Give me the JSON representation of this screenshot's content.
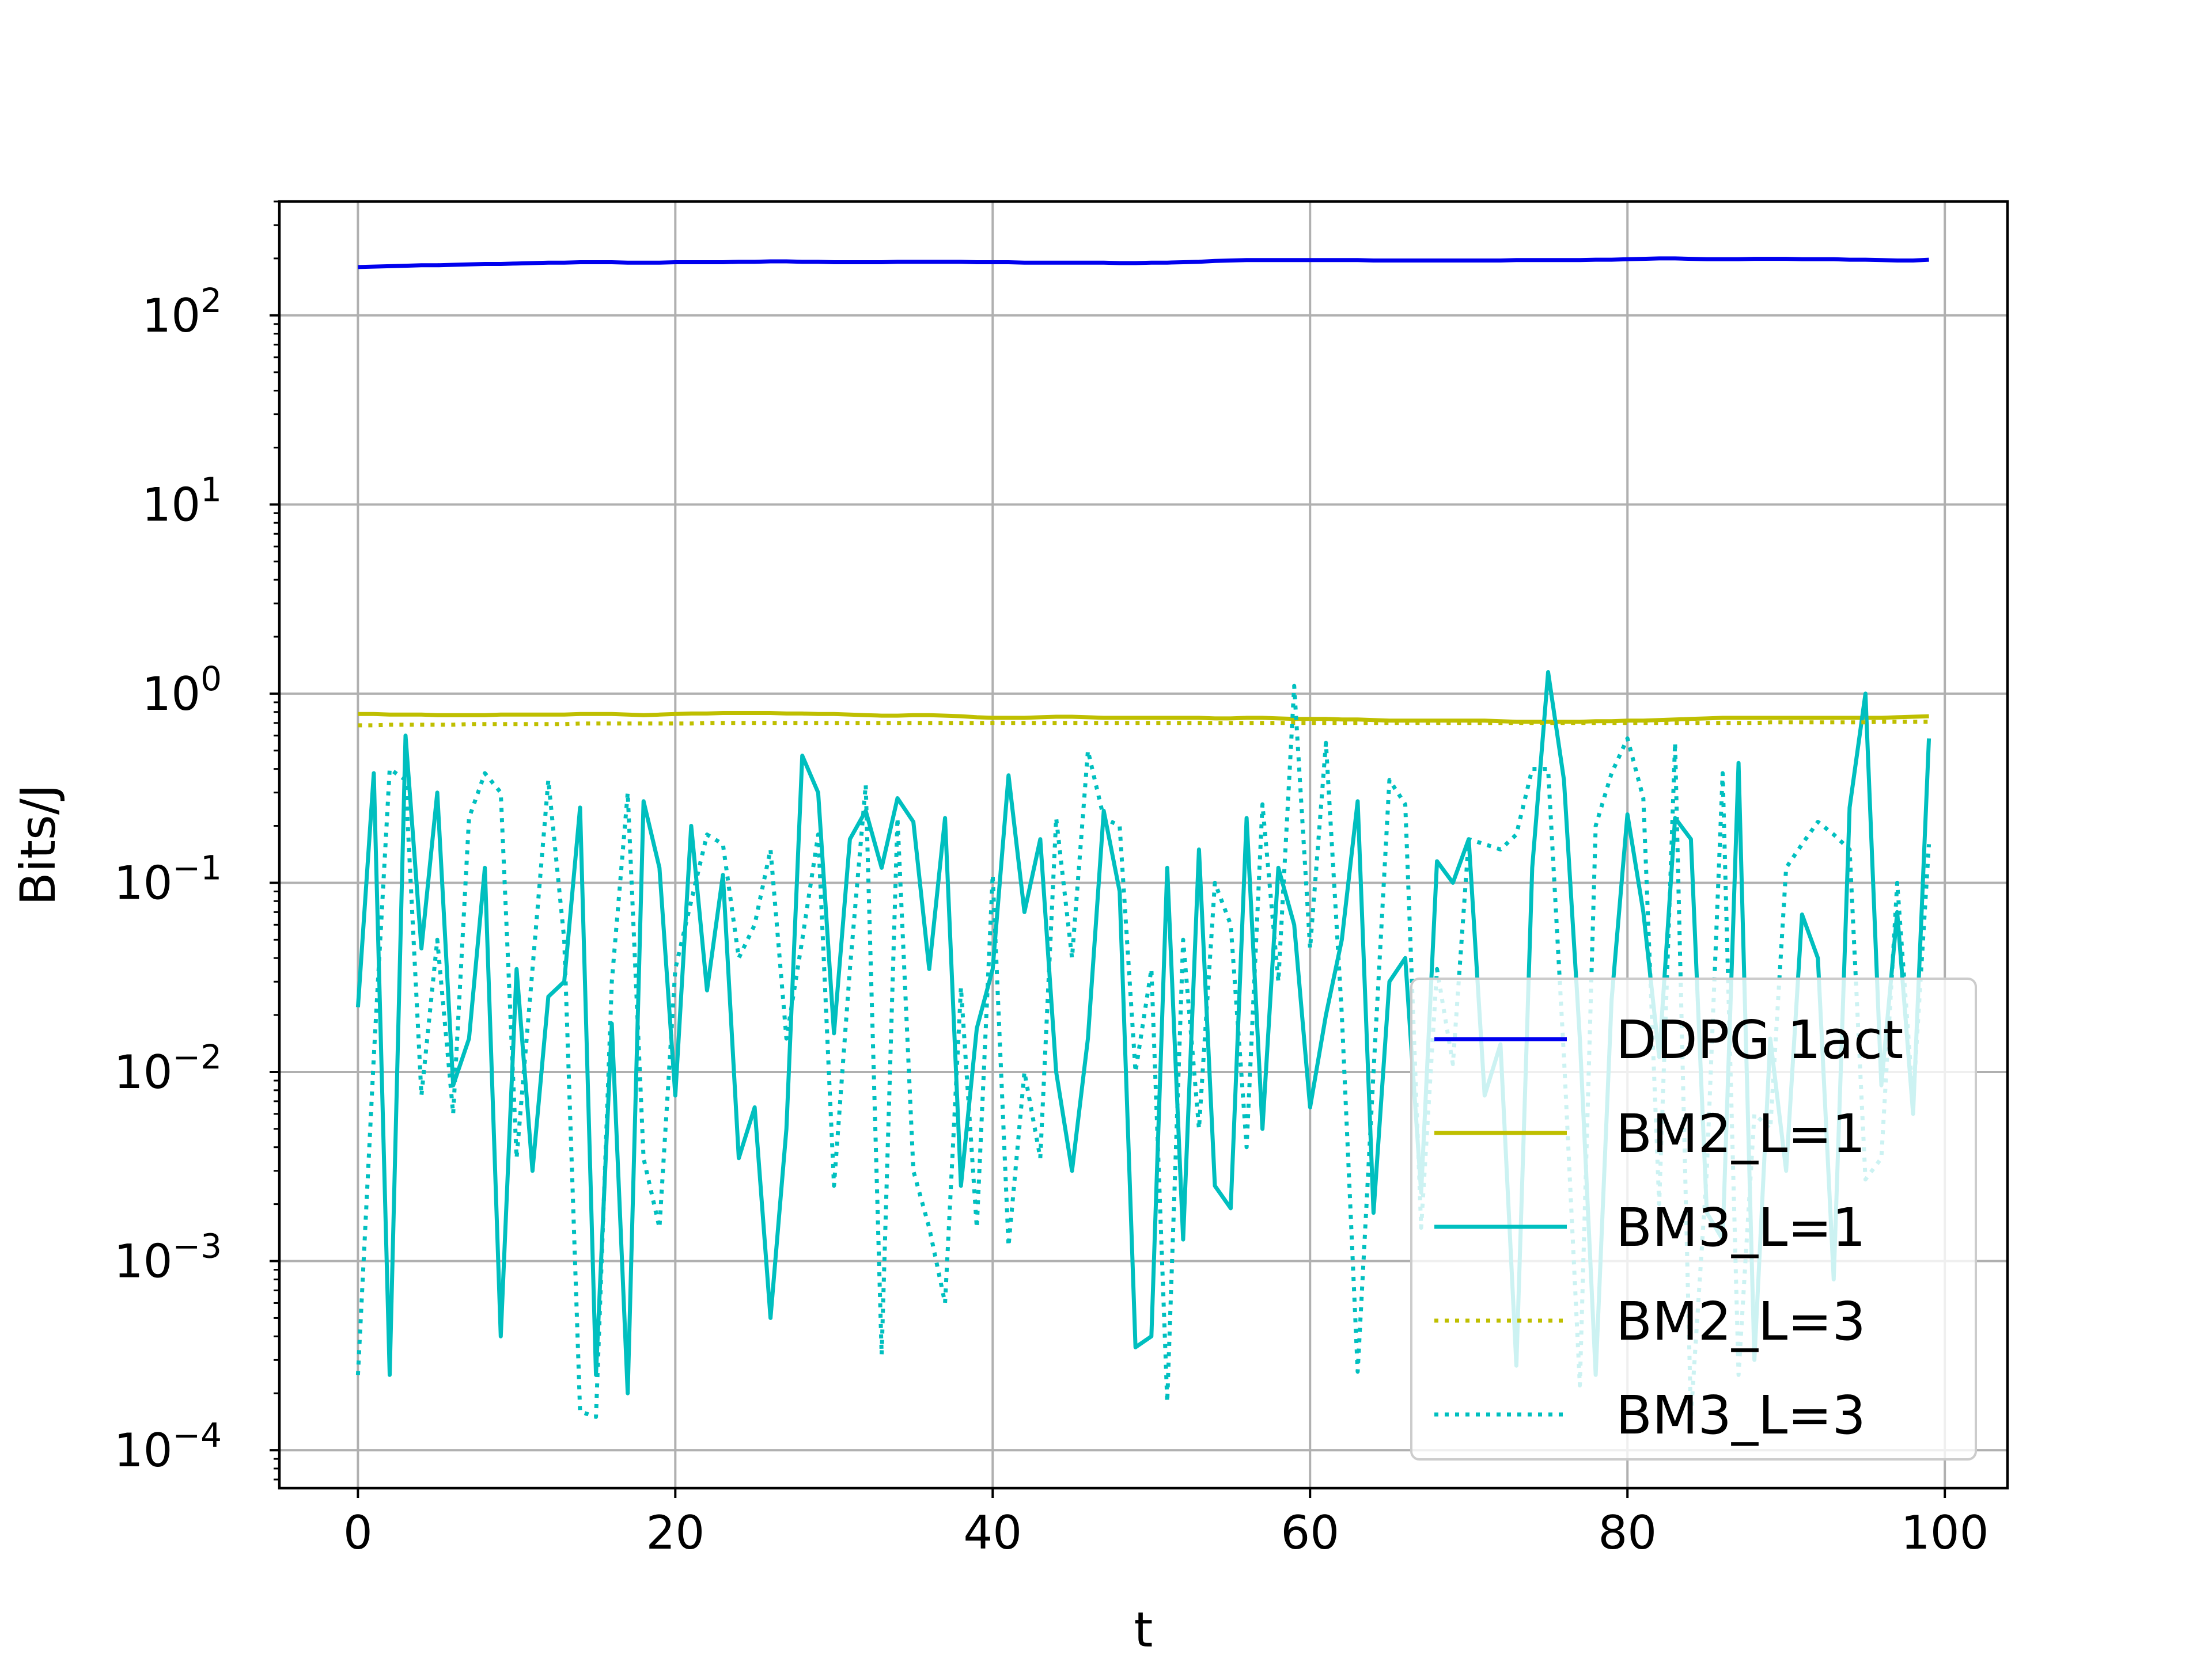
{
  "chart_data": {
    "type": "line",
    "title": "",
    "xlabel": "t",
    "ylabel": "Bits/J",
    "yscale": "log",
    "xlim": [
      -4.95,
      103.95
    ],
    "ylim": [
      6.3e-05,
      400
    ],
    "xticks": [
      0,
      20,
      40,
      60,
      80,
      100
    ],
    "xtick_labels": [
      "0",
      "20",
      "40",
      "60",
      "80",
      "100"
    ],
    "yticks": [
      {
        "value": 100,
        "base": "10",
        "exp": "2"
      },
      {
        "value": 10,
        "base": "10",
        "exp": "1"
      },
      {
        "value": 1,
        "base": "10",
        "exp": "0"
      },
      {
        "value": 0.1,
        "base": "10",
        "exp": "−1"
      },
      {
        "value": 0.01,
        "base": "10",
        "exp": "−2"
      },
      {
        "value": 0.001,
        "base": "10",
        "exp": "−3"
      },
      {
        "value": 0.0001,
        "base": "10",
        "exp": "−4"
      }
    ],
    "grid": true,
    "legend_position": "lower-right",
    "series": [
      {
        "name": "DDPG 1act",
        "color": "#0000ee",
        "style": "solid",
        "start": 180,
        "end": 197,
        "values": [
          180,
          181,
          182,
          183,
          184,
          184,
          185,
          186,
          187,
          187,
          188,
          189,
          190,
          190,
          191,
          191,
          191,
          190,
          190,
          190,
          191,
          191,
          191,
          191,
          192,
          192,
          193,
          193,
          192,
          192,
          191,
          191,
          191,
          191,
          192,
          192,
          192,
          192,
          192,
          191,
          191,
          191,
          190,
          190,
          190,
          190,
          190,
          190,
          189,
          189,
          190,
          190,
          191,
          192,
          194,
          195,
          196,
          196,
          196,
          196,
          196,
          196,
          196,
          196,
          195,
          195,
          195,
          195,
          195,
          195,
          195,
          195,
          195,
          196,
          196,
          196,
          196,
          196,
          197,
          197,
          198,
          199,
          200,
          200,
          199,
          198,
          198,
          198,
          199,
          199,
          199,
          198,
          198,
          198,
          197,
          197,
          196,
          195,
          195,
          197
        ]
      },
      {
        "name": "BM2_L=1",
        "color": "#bfbf00",
        "style": "solid",
        "start": 0.78,
        "end": 0.76,
        "values": [
          0.78,
          0.78,
          0.775,
          0.775,
          0.775,
          0.77,
          0.77,
          0.77,
          0.77,
          0.775,
          0.775,
          0.775,
          0.775,
          0.775,
          0.78,
          0.78,
          0.78,
          0.775,
          0.77,
          0.775,
          0.78,
          0.785,
          0.785,
          0.79,
          0.79,
          0.79,
          0.79,
          0.785,
          0.785,
          0.78,
          0.78,
          0.775,
          0.77,
          0.765,
          0.765,
          0.77,
          0.77,
          0.765,
          0.76,
          0.75,
          0.745,
          0.745,
          0.745,
          0.75,
          0.755,
          0.755,
          0.75,
          0.745,
          0.745,
          0.745,
          0.745,
          0.745,
          0.745,
          0.745,
          0.74,
          0.74,
          0.745,
          0.745,
          0.74,
          0.735,
          0.735,
          0.735,
          0.73,
          0.73,
          0.725,
          0.72,
          0.72,
          0.72,
          0.72,
          0.72,
          0.72,
          0.72,
          0.715,
          0.71,
          0.71,
          0.71,
          0.71,
          0.71,
          0.715,
          0.715,
          0.72,
          0.72,
          0.725,
          0.73,
          0.735,
          0.74,
          0.745,
          0.745,
          0.745,
          0.745,
          0.745,
          0.745,
          0.745,
          0.745,
          0.745,
          0.745,
          0.745,
          0.75,
          0.755,
          0.76
        ]
      },
      {
        "name": "BM3_L=1",
        "color": "#00bfbf",
        "style": "solid",
        "start": 0.022,
        "end": 0.58,
        "values": [
          0.022,
          0.38,
          0.00025,
          0.6,
          0.045,
          0.3,
          0.0085,
          0.015,
          0.12,
          0.0004,
          0.035,
          0.003,
          0.025,
          0.03,
          0.25,
          0.00025,
          0.018,
          0.0002,
          0.27,
          0.12,
          0.0075,
          0.2,
          0.027,
          0.11,
          0.0035,
          0.0065,
          0.0005,
          0.005,
          0.47,
          0.3,
          0.016,
          0.17,
          0.24,
          0.12,
          0.28,
          0.21,
          0.035,
          0.22,
          0.0025,
          0.017,
          0.035,
          0.37,
          0.07,
          0.17,
          0.01,
          0.003,
          0.015,
          0.24,
          0.09,
          0.00035,
          0.0004,
          0.12,
          0.0013,
          0.15,
          0.0025,
          0.0019,
          0.22,
          0.005,
          0.12,
          0.06,
          0.0065,
          0.02,
          0.05,
          0.27,
          0.0018,
          0.03,
          0.04,
          0.0023,
          0.13,
          0.1,
          0.17,
          0.0075,
          0.014,
          0.00028,
          0.12,
          1.3,
          0.35,
          0.015,
          0.00025,
          0.024,
          0.23,
          0.07,
          0.012,
          0.22,
          0.17,
          0.0018,
          0.0013,
          0.43,
          0.0003,
          0.015,
          0.003,
          0.068,
          0.04,
          0.0008,
          0.25,
          1.0,
          0.0085,
          0.07,
          0.006,
          0.58
        ]
      },
      {
        "name": "BM2_L=3",
        "color": "#bfbf00",
        "style": "dotted",
        "start": 0.68,
        "end": 0.71,
        "values": [
          0.68,
          0.68,
          0.685,
          0.685,
          0.685,
          0.685,
          0.685,
          0.69,
          0.69,
          0.69,
          0.69,
          0.69,
          0.69,
          0.69,
          0.695,
          0.695,
          0.695,
          0.695,
          0.695,
          0.695,
          0.695,
          0.695,
          0.7,
          0.7,
          0.7,
          0.7,
          0.7,
          0.7,
          0.7,
          0.7,
          0.7,
          0.7,
          0.7,
          0.7,
          0.7,
          0.7,
          0.7,
          0.7,
          0.7,
          0.7,
          0.7,
          0.7,
          0.7,
          0.7,
          0.7,
          0.7,
          0.7,
          0.7,
          0.7,
          0.7,
          0.7,
          0.7,
          0.7,
          0.7,
          0.7,
          0.7,
          0.7,
          0.7,
          0.7,
          0.7,
          0.7,
          0.7,
          0.7,
          0.7,
          0.7,
          0.7,
          0.7,
          0.7,
          0.7,
          0.7,
          0.7,
          0.7,
          0.7,
          0.7,
          0.7,
          0.7,
          0.7,
          0.7,
          0.7,
          0.7,
          0.7,
          0.7,
          0.7,
          0.7,
          0.7,
          0.7,
          0.7,
          0.7,
          0.7,
          0.705,
          0.705,
          0.705,
          0.705,
          0.705,
          0.705,
          0.705,
          0.71,
          0.71,
          0.71,
          0.71
        ]
      },
      {
        "name": "BM3_L=3",
        "color": "#00bfbf",
        "style": "dotted",
        "start": 0.00025,
        "end": 0.16,
        "values": [
          0.00025,
          0.012,
          0.4,
          0.35,
          0.0075,
          0.05,
          0.006,
          0.22,
          0.38,
          0.3,
          0.0035,
          0.035,
          0.35,
          0.05,
          0.00016,
          0.00015,
          0.03,
          0.3,
          0.0035,
          0.0015,
          0.035,
          0.08,
          0.18,
          0.16,
          0.04,
          0.06,
          0.15,
          0.015,
          0.05,
          0.18,
          0.0025,
          0.035,
          0.33,
          0.00032,
          0.22,
          0.003,
          0.0015,
          0.0006,
          0.028,
          0.0015,
          0.11,
          0.0012,
          0.01,
          0.0035,
          0.22,
          0.04,
          0.5,
          0.22,
          0.2,
          0.01,
          0.035,
          0.00018,
          0.05,
          0.005,
          0.1,
          0.06,
          0.004,
          0.26,
          0.03,
          1.1,
          0.045,
          0.55,
          0.02,
          0.00026,
          0.01,
          0.35,
          0.26,
          0.0015,
          0.035,
          0.011,
          0.17,
          0.16,
          0.15,
          0.18,
          0.4,
          0.4,
          0.012,
          0.00022,
          0.2,
          0.38,
          0.58,
          0.28,
          0.002,
          0.55,
          0.00015,
          0.003,
          0.38,
          0.00025,
          0.006,
          0.005,
          0.12,
          0.16,
          0.21,
          0.18,
          0.15,
          0.0027,
          0.0035,
          0.1,
          0.007,
          0.16
        ]
      }
    ]
  }
}
